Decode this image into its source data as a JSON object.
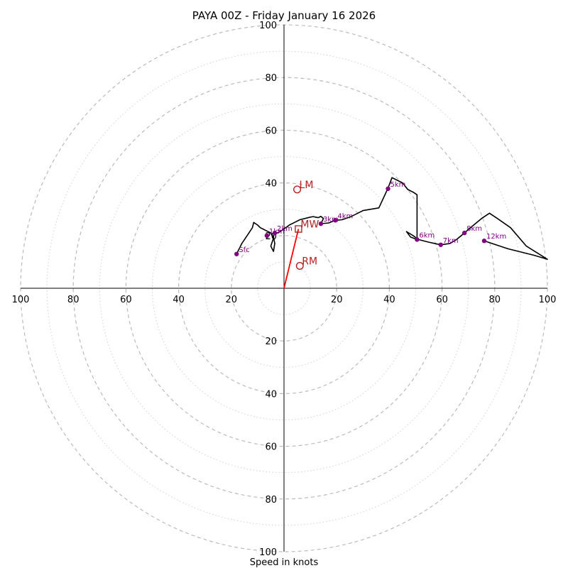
{
  "chart_data": {
    "type": "line",
    "title": "PAYA 00Z - Friday January 16 2026",
    "xlabel": "Speed in knots",
    "ylabel": "",
    "xlim": [
      -100,
      100
    ],
    "ylim": [
      -100,
      100
    ],
    "ring_labels": [
      "20",
      "40",
      "60",
      "80",
      "100"
    ],
    "colors": {
      "hodograph": "#000000",
      "markers": "#800080",
      "motion": "#b22222",
      "storm_vector": "#ff0000",
      "grid": "#bbbbbb"
    },
    "hodograph": [
      [
        -18,
        13
      ],
      [
        -16,
        17
      ],
      [
        -14,
        20
      ],
      [
        -12,
        23
      ],
      [
        -11.5,
        25
      ],
      [
        -10,
        24
      ],
      [
        -9,
        23
      ],
      [
        -8,
        22.5
      ],
      [
        -7,
        22
      ],
      [
        -6,
        21.5
      ],
      [
        -5,
        21
      ],
      [
        -4,
        19
      ],
      [
        -5,
        16
      ],
      [
        -4,
        14
      ],
      [
        -3.5,
        17
      ],
      [
        -4,
        19.5
      ],
      [
        -4,
        20
      ],
      [
        -3.5,
        20.5
      ],
      [
        -3,
        20.8
      ],
      [
        -2,
        21.2
      ],
      [
        0,
        22.5
      ],
      [
        2,
        24
      ],
      [
        4,
        25
      ],
      [
        6,
        26
      ],
      [
        8,
        26.5
      ],
      [
        10,
        27
      ],
      [
        11,
        27.2
      ],
      [
        12,
        27
      ],
      [
        13,
        26.8
      ],
      [
        14,
        27.3
      ],
      [
        15,
        26.5
      ],
      [
        14,
        24.5
      ],
      [
        17,
        24.8
      ],
      [
        19.5,
        25.8
      ],
      [
        22,
        26
      ],
      [
        25,
        27
      ],
      [
        28,
        28.5
      ],
      [
        30,
        29.5
      ],
      [
        33,
        30
      ],
      [
        36,
        30.5
      ],
      [
        39.5,
        38
      ],
      [
        41,
        42
      ],
      [
        43,
        41
      ],
      [
        45,
        40
      ],
      [
        47,
        37.5
      ],
      [
        49,
        36.5
      ],
      [
        50.5,
        35.5
      ],
      [
        50.5,
        18.5
      ],
      [
        48,
        19.5
      ],
      [
        46.5,
        21.5
      ],
      [
        49,
        20
      ],
      [
        51,
        18.5
      ],
      [
        55,
        17.5
      ],
      [
        59.5,
        16.5
      ],
      [
        63,
        17
      ],
      [
        65.5,
        18.5
      ],
      [
        68.5,
        21
      ],
      [
        72,
        24
      ],
      [
        75,
        26.5
      ],
      [
        78,
        28.5
      ],
      [
        81,
        26.5
      ],
      [
        86,
        23
      ],
      [
        92,
        16
      ],
      [
        100,
        11
      ],
      [
        95,
        12.5
      ],
      [
        85,
        15
      ],
      [
        76,
        18
      ]
    ],
    "height_markers": [
      {
        "label": "Sfc",
        "u": -18,
        "v": 13
      },
      {
        "label": "1km",
        "u": -6.5,
        "v": 20
      },
      {
        "label": "2km",
        "u": -3.5,
        "v": 21
      },
      {
        "label": "3km",
        "u": 14,
        "v": 24.5
      },
      {
        "label": "4km",
        "u": 19.5,
        "v": 25.8
      },
      {
        "label": "5km",
        "u": 39.5,
        "v": 37.8
      },
      {
        "label": "6km",
        "u": 50.5,
        "v": 18.5
      },
      {
        "label": "7km",
        "u": 59.5,
        "v": 16.5
      },
      {
        "label": "8km",
        "u": 68.5,
        "v": 21
      },
      {
        "label": "12km",
        "u": 76,
        "v": 18
      }
    ],
    "storm_motion": [
      {
        "label": "LM",
        "u": 5,
        "v": 37.5,
        "marker": "circle"
      },
      {
        "label": "MW",
        "u": 5.5,
        "v": 22.5,
        "marker": "square"
      },
      {
        "label": "RM",
        "u": 6,
        "v": 8.5,
        "marker": "circle"
      }
    ],
    "storm_vector": {
      "u": 5.5,
      "v": 22.5
    }
  }
}
